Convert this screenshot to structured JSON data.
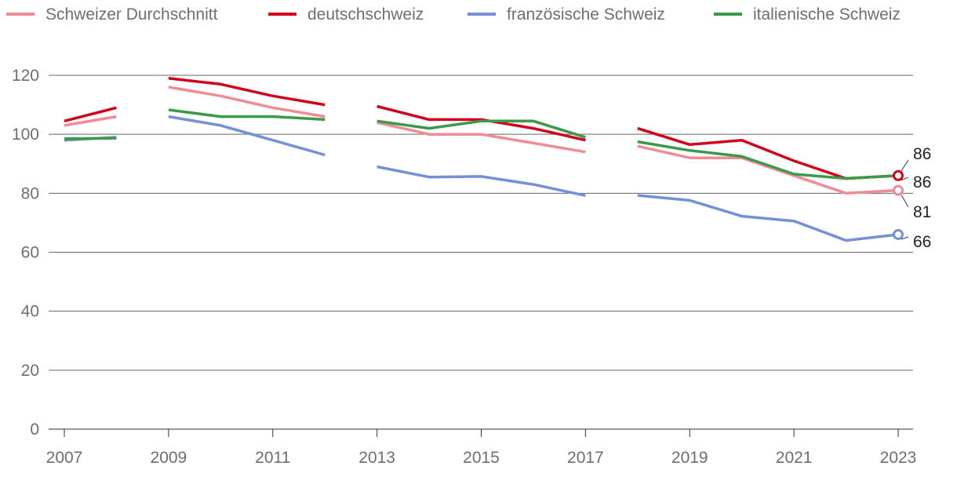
{
  "chart_data": {
    "type": "line",
    "title": "",
    "xlabel": "",
    "ylabel": "",
    "ylim": [
      0,
      120
    ],
    "xlim": [
      2007,
      2023
    ],
    "y_ticks": [
      "0",
      "20",
      "40",
      "60",
      "80",
      "100",
      "120"
    ],
    "x_ticks": [
      "2007",
      "2009",
      "2011",
      "2013",
      "2015",
      "2017",
      "2019",
      "2021",
      "2023"
    ],
    "legend_position": "top",
    "grid": true,
    "series": [
      {
        "name": "Schweizer Durchschnitt",
        "color": "#f08c96",
        "segments": [
          [
            [
              2007,
              103
            ],
            [
              2008,
              106
            ]
          ],
          [
            [
              2009,
              116
            ],
            [
              2010,
              113
            ],
            [
              2011,
              109
            ],
            [
              2012,
              106
            ]
          ],
          [
            [
              2013,
              104
            ],
            [
              2014,
              100
            ],
            [
              2015,
              100
            ],
            [
              2016,
              97
            ],
            [
              2017,
              94
            ]
          ],
          [
            [
              2018,
              96
            ],
            [
              2019,
              92
            ],
            [
              2020,
              92
            ],
            [
              2021,
              86
            ],
            [
              2022,
              80
            ],
            [
              2023,
              81
            ]
          ]
        ],
        "end_label": "81"
      },
      {
        "name": "deutschschweiz",
        "color": "#d0021b",
        "segments": [
          [
            [
              2007,
              104.5
            ],
            [
              2008,
              109
            ]
          ],
          [
            [
              2009,
              119
            ],
            [
              2010,
              117
            ],
            [
              2011,
              113
            ],
            [
              2012,
              110
            ]
          ],
          [
            [
              2013,
              109.5
            ],
            [
              2014,
              105
            ],
            [
              2015,
              105
            ],
            [
              2016,
              102
            ],
            [
              2017,
              98
            ]
          ],
          [
            [
              2018,
              102
            ],
            [
              2019,
              96.5
            ],
            [
              2020,
              98
            ],
            [
              2021,
              91
            ],
            [
              2022,
              85
            ],
            [
              2023,
              86
            ]
          ]
        ],
        "end_label": "86"
      },
      {
        "name": "französische Schweiz",
        "color": "#7590d8",
        "segments": [
          [
            [
              2007,
              98
            ],
            [
              2008,
              99
            ]
          ],
          [
            [
              2009,
              106
            ],
            [
              2010,
              103
            ],
            [
              2011,
              98
            ],
            [
              2012,
              93
            ]
          ],
          [
            [
              2013,
              89
            ],
            [
              2014,
              85.5
            ],
            [
              2015,
              85.7
            ],
            [
              2016,
              83
            ],
            [
              2017,
              79.2
            ]
          ],
          [
            [
              2018,
              79.3
            ],
            [
              2019,
              77.6
            ],
            [
              2020,
              72.2
            ],
            [
              2021,
              70.6
            ],
            [
              2022,
              64
            ],
            [
              2023,
              66
            ]
          ]
        ],
        "end_label": "66"
      },
      {
        "name": "italienische Schweiz",
        "color": "#3a9a4a",
        "segments": [
          [
            [
              2007,
              98.5
            ],
            [
              2008,
              98.7
            ]
          ],
          [
            [
              2009,
              108.3
            ],
            [
              2010,
              106
            ],
            [
              2011,
              106
            ],
            [
              2012,
              105
            ]
          ],
          [
            [
              2013,
              104.5
            ],
            [
              2014,
              102
            ],
            [
              2015,
              104.5
            ],
            [
              2016,
              104.5
            ],
            [
              2017,
              99
            ]
          ],
          [
            [
              2018,
              97.5
            ],
            [
              2019,
              94.5
            ],
            [
              2020,
              92.5
            ],
            [
              2021,
              86.5
            ],
            [
              2022,
              85
            ],
            [
              2023,
              86
            ]
          ]
        ],
        "end_label": "86"
      }
    ],
    "end_label_order": [
      "deutschschweiz",
      "italienische Schweiz",
      "Schweizer Durchschnitt",
      "französische Schweiz"
    ],
    "end_markers": [
      "deutschschweiz",
      "Schweizer Durchschnitt",
      "französische Schweiz"
    ]
  }
}
